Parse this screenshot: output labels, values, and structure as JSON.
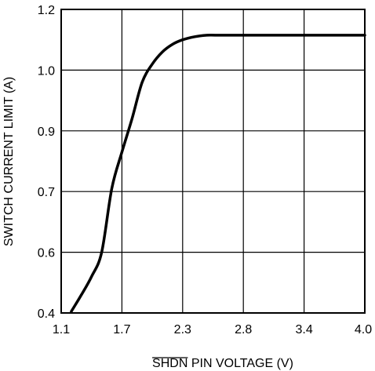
{
  "chart_data": {
    "type": "line",
    "title": "",
    "xlabel_overbar": "SHDN",
    "xlabel_rest": " PIN VOLTAGE (V)",
    "ylabel": "SWITCH CURRENT LIMIT (A)",
    "x_tick_labels": [
      "1.1",
      "1.7",
      "2.3",
      "2.8",
      "3.4",
      "4.0"
    ],
    "y_tick_labels": [
      "0.4",
      "0.6",
      "0.7",
      "0.9",
      "1.0",
      "1.2"
    ],
    "grid": true,
    "line_color": "#000000",
    "series": [
      {
        "x": [
          1.2,
          1.3,
          1.4,
          1.5,
          1.6,
          1.7,
          1.8,
          1.9,
          2.0,
          2.1,
          2.2,
          2.3,
          2.4,
          2.5,
          2.6,
          3.0,
          3.5,
          4.0
        ],
        "y": [
          0.405,
          0.46,
          0.52,
          0.6,
          0.71,
          0.83,
          0.92,
          0.98,
          1.02,
          1.06,
          1.085,
          1.1,
          1.11,
          1.115,
          1.115,
          1.115,
          1.115,
          1.115
        ]
      }
    ]
  }
}
